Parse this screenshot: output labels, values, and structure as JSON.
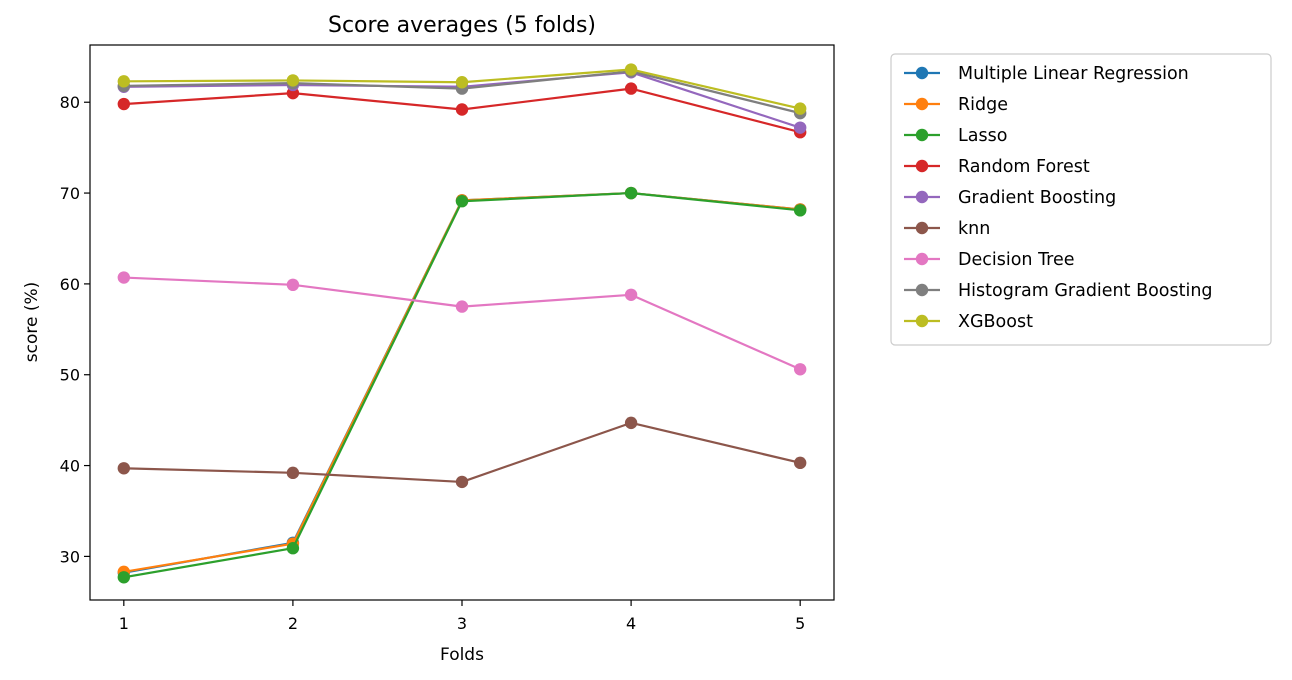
{
  "chart_data": {
    "type": "line",
    "title": "Score averages (5 folds)",
    "xlabel": "Folds",
    "ylabel": "score (%)",
    "x": [
      1,
      2,
      3,
      4,
      5
    ],
    "xticks": [
      "1",
      "2",
      "3",
      "4",
      "5"
    ],
    "yticks": [
      "30",
      "40",
      "50",
      "60",
      "70",
      "80"
    ],
    "xlim": [
      0.8,
      5.2
    ],
    "ylim": [
      25.2,
      86.3
    ],
    "grid": false,
    "legend_position": "outside-right",
    "series": [
      {
        "name": "Multiple Linear Regression",
        "color": "#1f77b4",
        "values": [
          28.2,
          31.5,
          69.2,
          70.0,
          68.2
        ]
      },
      {
        "name": "Ridge",
        "color": "#ff7f0e",
        "values": [
          28.3,
          31.4,
          69.2,
          70.0,
          68.2
        ]
      },
      {
        "name": "Lasso",
        "color": "#2ca02c",
        "values": [
          27.7,
          30.9,
          69.1,
          70.0,
          68.1
        ]
      },
      {
        "name": "Random Forest",
        "color": "#d62728",
        "values": [
          79.8,
          81.0,
          79.2,
          81.5,
          76.7
        ]
      },
      {
        "name": "Gradient Boosting",
        "color": "#9467bd",
        "values": [
          81.7,
          81.9,
          81.7,
          83.3,
          77.2
        ]
      },
      {
        "name": "knn",
        "color": "#8c564b",
        "values": [
          39.7,
          39.2,
          38.2,
          44.7,
          40.3
        ]
      },
      {
        "name": "Decision Tree",
        "color": "#e377c2",
        "values": [
          60.7,
          59.9,
          57.5,
          58.8,
          50.6
        ]
      },
      {
        "name": "Histogram Gradient Boosting",
        "color": "#7f7f7f",
        "values": [
          81.8,
          82.1,
          81.5,
          83.4,
          78.8
        ]
      },
      {
        "name": "XGBoost",
        "color": "#bcbd22",
        "values": [
          82.3,
          82.4,
          82.2,
          83.6,
          79.3
        ]
      }
    ]
  }
}
